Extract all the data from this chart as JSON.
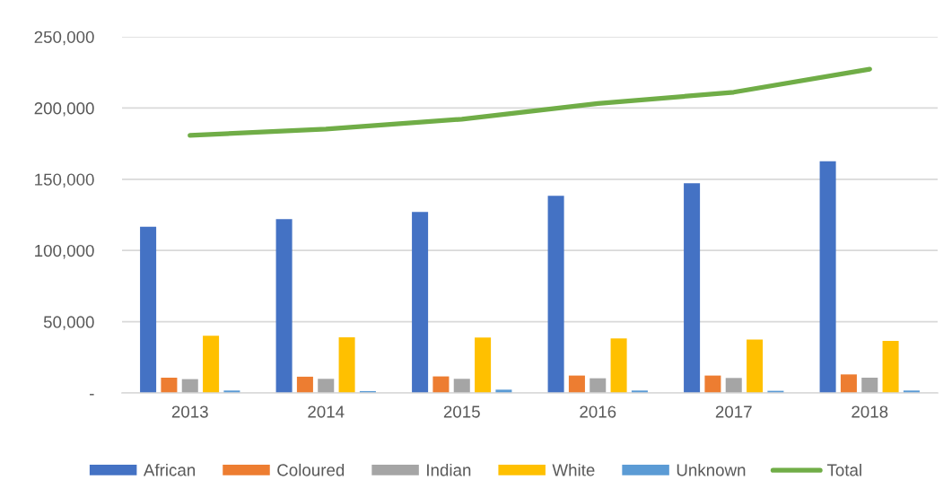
{
  "chart_data": {
    "type": "bar",
    "categories": [
      "2013",
      "2014",
      "2015",
      "2016",
      "2017",
      "2018"
    ],
    "series": [
      {
        "name": "African",
        "color": "#4472c4",
        "values": [
          116700,
          122000,
          127000,
          138400,
          147200,
          162700
        ]
      },
      {
        "name": "Coloured",
        "color": "#ed7d31",
        "values": [
          10700,
          11400,
          11600,
          12200,
          12200,
          13000
        ]
      },
      {
        "name": "Indian",
        "color": "#a5a5a5",
        "values": [
          9700,
          9900,
          9900,
          10300,
          10500,
          10700
        ]
      },
      {
        "name": "White",
        "color": "#ffc000",
        "values": [
          40200,
          39100,
          38900,
          38300,
          37400,
          36600
        ]
      },
      {
        "name": "Unknown",
        "color": "#5b9bd5",
        "values": [
          1700,
          1300,
          2300,
          1700,
          1500,
          1700
        ]
      },
      {
        "name": "Total",
        "type": "line",
        "color": "#70ad47",
        "values": [
          180800,
          185200,
          192200,
          203100,
          211100,
          227300
        ]
      }
    ],
    "ylim": [
      0,
      250000
    ],
    "yticks": [
      {
        "value": 0,
        "label": "-"
      },
      {
        "value": 50000,
        "label": "50,000"
      },
      {
        "value": 100000,
        "label": "100,000"
      },
      {
        "value": 150000,
        "label": "150,000"
      },
      {
        "value": 200000,
        "label": "200,000"
      },
      {
        "value": 250000,
        "label": "250,000"
      }
    ],
    "grid": "y",
    "legend": "bottom",
    "line_style": "solid"
  }
}
